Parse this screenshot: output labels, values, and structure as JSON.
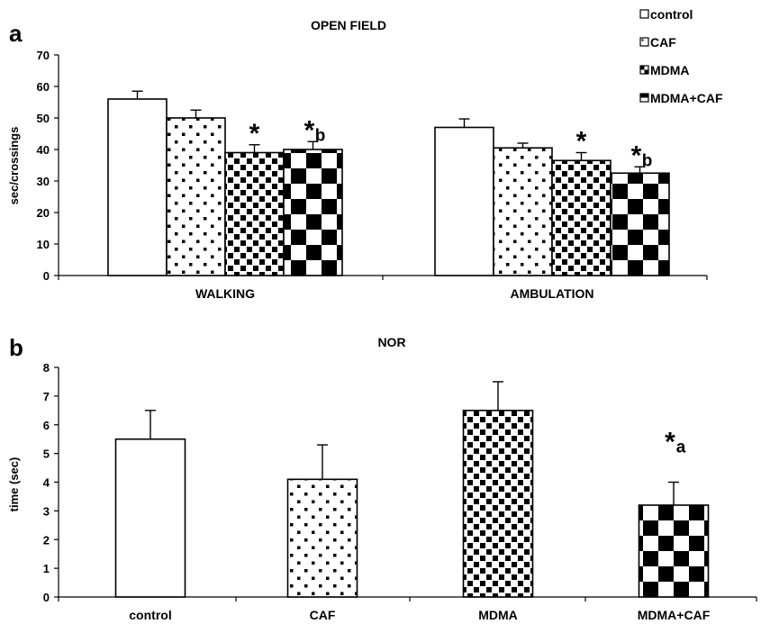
{
  "panels": {
    "a": {
      "letter": "a"
    },
    "b": {
      "letter": "b"
    }
  },
  "legend": {
    "items": [
      "control",
      "CAF",
      "MDMA",
      "MDMA+CAF"
    ],
    "patterns": [
      "plain",
      "dots",
      "small-checker",
      "large-checker"
    ]
  },
  "colors": {
    "fill": "#ffffff",
    "ink": "#000000"
  },
  "chart_data": [
    {
      "type": "bar",
      "title": "OPEN FIELD",
      "xlabel": "",
      "ylabel": "sec/crossings",
      "ylim": [
        0,
        70
      ],
      "yticks": [
        0,
        10,
        20,
        30,
        40,
        50,
        60,
        70
      ],
      "categories": [
        "WALKING",
        "AMBULATION"
      ],
      "series": [
        {
          "name": "control",
          "values": [
            56,
            47
          ],
          "errors": [
            2.5,
            2.7
          ]
        },
        {
          "name": "CAF",
          "values": [
            50,
            40.5
          ],
          "errors": [
            2.5,
            1.5
          ]
        },
        {
          "name": "MDMA",
          "values": [
            39,
            36.5
          ],
          "errors": [
            2.5,
            2.5
          ]
        },
        {
          "name": "MDMA+CAF",
          "values": [
            40,
            32.5
          ],
          "errors": [
            2.5,
            2.0
          ]
        }
      ],
      "annotations": [
        {
          "category": 0,
          "series": 2,
          "star": "*",
          "letter": ""
        },
        {
          "category": 0,
          "series": 3,
          "star": "*",
          "letter": "b"
        },
        {
          "category": 1,
          "series": 2,
          "star": "*",
          "letter": ""
        },
        {
          "category": 1,
          "series": 3,
          "star": "*",
          "letter": "b"
        }
      ]
    },
    {
      "type": "bar",
      "title": "NOR",
      "xlabel": "",
      "ylabel": "time (sec)",
      "ylim": [
        0,
        8
      ],
      "yticks": [
        0,
        1,
        2,
        3,
        4,
        5,
        6,
        7,
        8
      ],
      "categories": [
        "control",
        "CAF",
        "MDMA",
        "MDMA+CAF"
      ],
      "values": [
        5.5,
        4.1,
        6.5,
        3.2
      ],
      "errors": [
        1.0,
        1.2,
        1.0,
        0.8
      ],
      "annotations": [
        {
          "category": 3,
          "star": "*",
          "letter": "a"
        }
      ]
    }
  ]
}
